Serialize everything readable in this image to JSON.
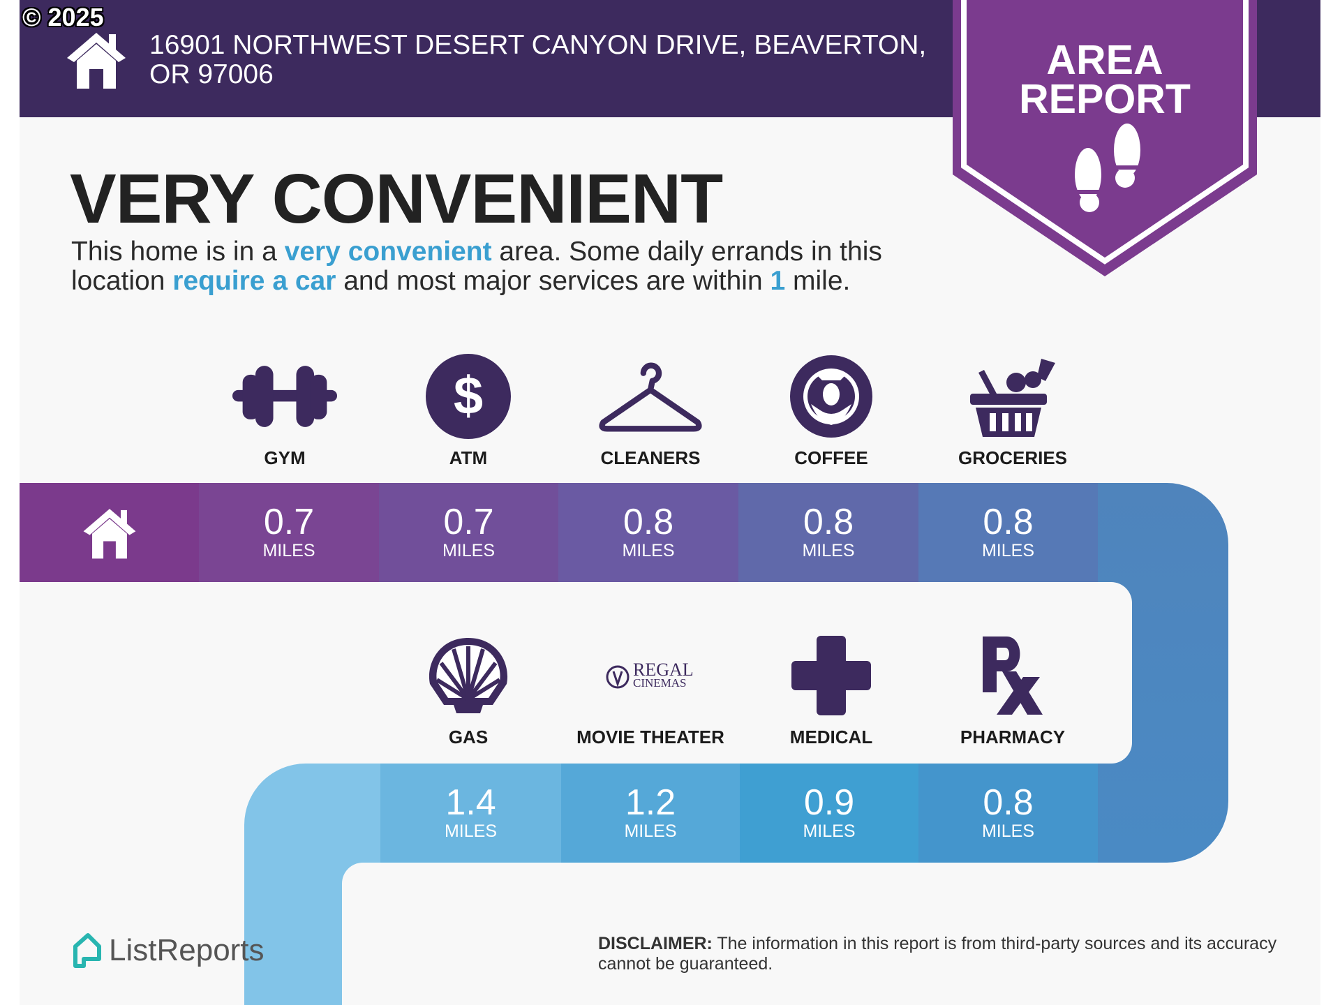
{
  "copyright": "© 2025",
  "header": {
    "address_line1": "16901 NORTHWEST DESERT CANYON DRIVE, BEAVERTON,",
    "address_line2": "OR 97006",
    "icon": "house-icon"
  },
  "badge": {
    "line1": "AREA",
    "line2": "REPORT",
    "icon": "footprints-icon",
    "color": "#7b3b8e"
  },
  "title": "VERY CONVENIENT",
  "description": {
    "p1": "This home is in a ",
    "h1": "very convenient",
    "p2": " area. Some daily errands in this location ",
    "h2": "require a car",
    "p3": " and most major services are within ",
    "h3": "1",
    "p4": " mile."
  },
  "unit_label": "MILES",
  "row1": [
    {
      "label": "GYM",
      "value": "0.7",
      "icon": "dumbbell-icon",
      "color": "#7a4593"
    },
    {
      "label": "ATM",
      "value": "0.7",
      "icon": "dollar-icon",
      "color": "#714f9a"
    },
    {
      "label": "CLEANERS",
      "value": "0.8",
      "icon": "hanger-icon",
      "color": "#6a5aa3"
    },
    {
      "label": "COFFEE",
      "value": "0.8",
      "icon": "starbucks-logo-icon",
      "color": "#6069aa"
    },
    {
      "label": "GROCERIES",
      "value": "0.8",
      "icon": "grocery-basket-icon",
      "color": "#5679b6"
    }
  ],
  "row2": [
    {
      "label": "GAS",
      "value": "1.4",
      "icon": "shell-logo-icon",
      "color": "#6bb6e0"
    },
    {
      "label": "MOVIE THEATER",
      "value": "1.2",
      "icon": "regal-cinemas-logo-icon",
      "logo_text1": "REGAL",
      "logo_text2": "CINEMAS",
      "color": "#55a8d8"
    },
    {
      "label": "MEDICAL",
      "value": "0.9",
      "icon": "medical-cross-icon",
      "color": "#3f9fd2"
    },
    {
      "label": "PHARMACY",
      "value": "0.8",
      "icon": "rx-icon",
      "color": "#4495cc"
    }
  ],
  "footer": {
    "brand": "ListReports",
    "disclaimer_label": "DISCLAIMER:",
    "disclaimer_text": " The information in this report is from third-party sources and its accuracy cannot be guaranteed."
  }
}
